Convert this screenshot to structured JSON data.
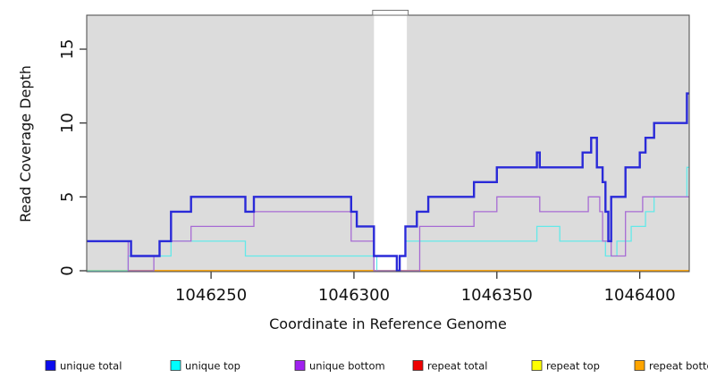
{
  "chart_data": {
    "type": "line",
    "style": "step-coverage-plot",
    "xlabel": "Coordinate in Reference Genome",
    "ylabel": "Read Coverage Depth",
    "x_ticks": [
      1046250,
      1046300,
      1046350,
      1046400
    ],
    "y_ticks": [
      0,
      5,
      10,
      15
    ],
    "xlim": [
      1046206.5,
      1046417.3
    ],
    "ylim": [
      -0.06,
      17.3
    ],
    "grid": false,
    "plot_background": "#DCDCDC",
    "gap_region": [
      1046307,
      1046318.5
    ],
    "legend_position": "bottom",
    "legend": [
      {
        "label": "unique total",
        "color": "#0B0BEE"
      },
      {
        "label": "unique top",
        "color": "#00FFFF"
      },
      {
        "label": "unique bottom",
        "color": "#A020F0"
      },
      {
        "label": "repeat total",
        "color": "#EE0000"
      },
      {
        "label": "repeat top",
        "color": "#FFFF00"
      },
      {
        "label": "repeat bottom",
        "color": "#FFA500"
      }
    ],
    "series": [
      {
        "name": "repeat total",
        "color": "#EE0000",
        "width": 1.3,
        "segments": [
          [
            1046206.5,
            1046417.3,
            0
          ]
        ]
      },
      {
        "name": "repeat top",
        "color": "#FFFF00",
        "width": 1.3,
        "segments": [
          [
            1046206.5,
            1046417.3,
            0
          ]
        ]
      },
      {
        "name": "repeat bottom",
        "color": "#FFA500",
        "width": 1.6,
        "segments": [
          [
            1046206.5,
            1046417.3,
            0
          ]
        ]
      },
      {
        "name": "unique top",
        "color": "#63E9E9",
        "width": 1.3,
        "segments": [
          [
            1046206.5,
            1046221,
            0
          ],
          [
            1046221,
            1046236,
            1
          ],
          [
            1046236,
            1046262,
            2
          ],
          [
            1046262,
            1046308,
            1
          ],
          [
            1046308,
            1046316,
            0
          ],
          [
            1046316,
            1046318,
            1
          ],
          [
            1046318,
            1046364,
            2
          ],
          [
            1046364,
            1046372,
            3
          ],
          [
            1046372,
            1046388,
            2
          ],
          [
            1046388,
            1046392,
            1
          ],
          [
            1046392,
            1046397,
            2
          ],
          [
            1046397,
            1046402,
            3
          ],
          [
            1046402,
            1046405,
            4
          ],
          [
            1046405,
            1046416.5,
            5
          ],
          [
            1046416.5,
            1046417.3,
            7
          ]
        ]
      },
      {
        "name": "unique bottom",
        "color": "#A76BD4",
        "width": 1.3,
        "segments": [
          [
            1046206.5,
            1046221,
            2
          ],
          [
            1046221,
            1046230,
            0
          ],
          [
            1046230,
            1046232,
            1
          ],
          [
            1046232,
            1046243,
            2
          ],
          [
            1046243,
            1046265,
            3
          ],
          [
            1046265,
            1046299,
            4
          ],
          [
            1046299,
            1046307,
            2
          ],
          [
            1046307,
            1046323,
            0
          ],
          [
            1046323,
            1046342,
            3
          ],
          [
            1046342,
            1046350,
            4
          ],
          [
            1046350,
            1046365,
            5
          ],
          [
            1046365,
            1046382,
            4
          ],
          [
            1046382,
            1046386,
            5
          ],
          [
            1046386,
            1046387,
            4
          ],
          [
            1046387,
            1046390,
            2
          ],
          [
            1046390,
            1046395,
            1
          ],
          [
            1046395,
            1046401,
            4
          ],
          [
            1046401,
            1046417.3,
            5
          ]
        ]
      },
      {
        "name": "unique total",
        "color": "#2A2AD8",
        "width": 2.4,
        "segments": [
          [
            1046206.5,
            1046222,
            2
          ],
          [
            1046222,
            1046232,
            1
          ],
          [
            1046232,
            1046236,
            2
          ],
          [
            1046236,
            1046243,
            4
          ],
          [
            1046243,
            1046262,
            5
          ],
          [
            1046262,
            1046265,
            4
          ],
          [
            1046265,
            1046299,
            5
          ],
          [
            1046299,
            1046301,
            4
          ],
          [
            1046301,
            1046307,
            3
          ],
          [
            1046307,
            1046315,
            1
          ],
          [
            1046315,
            1046316,
            0
          ],
          [
            1046316,
            1046318,
            1
          ],
          [
            1046318,
            1046322,
            3
          ],
          [
            1046322,
            1046326,
            4
          ],
          [
            1046326,
            1046342,
            5
          ],
          [
            1046342,
            1046350,
            6
          ],
          [
            1046350,
            1046364,
            7
          ],
          [
            1046364,
            1046365,
            8
          ],
          [
            1046365,
            1046380,
            7
          ],
          [
            1046380,
            1046383,
            8
          ],
          [
            1046383,
            1046385,
            9
          ],
          [
            1046385,
            1046387,
            7
          ],
          [
            1046387,
            1046388,
            6
          ],
          [
            1046388,
            1046389,
            4
          ],
          [
            1046389,
            1046390,
            2
          ],
          [
            1046390,
            1046395,
            5
          ],
          [
            1046395,
            1046400,
            7
          ],
          [
            1046400,
            1046402,
            8
          ],
          [
            1046402,
            1046405,
            9
          ],
          [
            1046405,
            1046416.5,
            10
          ],
          [
            1046416.5,
            1046417.3,
            12
          ]
        ]
      }
    ]
  }
}
